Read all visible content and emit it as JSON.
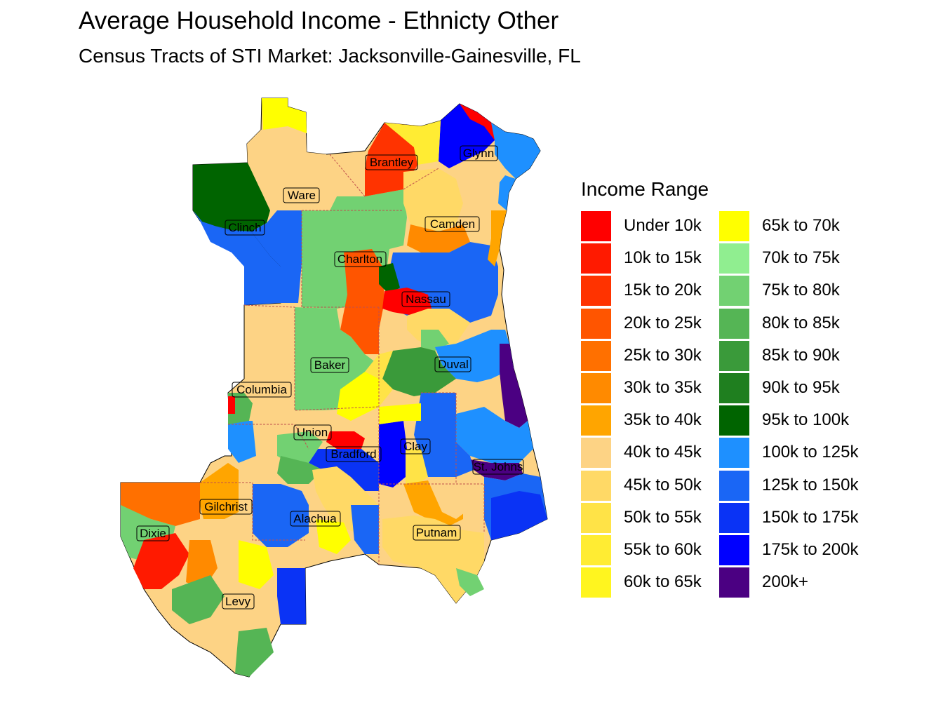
{
  "title": "Average Household Income - Ethnicty Other",
  "subtitle": "Census Tracts of STI Market: Jacksonville-Gainesville, FL",
  "legend": {
    "title": "Income Range",
    "items": [
      {
        "label": "Under 10k",
        "color": "#FF0000"
      },
      {
        "label": "10k to 15k",
        "color": "#FF1A00"
      },
      {
        "label": "15k to 20k",
        "color": "#FF3300"
      },
      {
        "label": "20k to 25k",
        "color": "#FF5500"
      },
      {
        "label": "25k to 30k",
        "color": "#FF7000"
      },
      {
        "label": "30k to 35k",
        "color": "#FF8A00"
      },
      {
        "label": "35k to 40k",
        "color": "#FFA500"
      },
      {
        "label": "40k to 45k",
        "color": "#FDD385"
      },
      {
        "label": "45k to 50k",
        "color": "#FFD966"
      },
      {
        "label": "50k to 55k",
        "color": "#FFE347"
      },
      {
        "label": "55k to 60k",
        "color": "#FFEC33"
      },
      {
        "label": "60k to 65k",
        "color": "#FFF51F"
      },
      {
        "label": "65k to 70k",
        "color": "#FFFF00"
      },
      {
        "label": "70k to 75k",
        "color": "#90EE90"
      },
      {
        "label": "75k to 80k",
        "color": "#72D172"
      },
      {
        "label": "80k to 85k",
        "color": "#55B555"
      },
      {
        "label": "85k to 90k",
        "color": "#3A9A3A"
      },
      {
        "label": "90k to 95k",
        "color": "#1F7F1F"
      },
      {
        "label": "95k to 100k",
        "color": "#006400"
      },
      {
        "label": "100k to 125k",
        "color": "#1E90FF"
      },
      {
        "label": "125k to 150k",
        "color": "#1A66F5"
      },
      {
        "label": "150k to 175k",
        "color": "#0A33F5"
      },
      {
        "label": "175k to 200k",
        "color": "#0000FF"
      },
      {
        "label": "200k+",
        "color": "#4B0082"
      }
    ]
  },
  "counties": [
    {
      "name": "Brantley"
    },
    {
      "name": "Glynn"
    },
    {
      "name": "Ware"
    },
    {
      "name": "Camden"
    },
    {
      "name": "Clinch"
    },
    {
      "name": "Charlton"
    },
    {
      "name": "Nassau"
    },
    {
      "name": "Baker"
    },
    {
      "name": "Duval"
    },
    {
      "name": "Columbia"
    },
    {
      "name": "Union"
    },
    {
      "name": "Clay"
    },
    {
      "name": "Bradford"
    },
    {
      "name": "St. Johns"
    },
    {
      "name": "Gilchrist"
    },
    {
      "name": "Alachua"
    },
    {
      "name": "Dixie"
    },
    {
      "name": "Putnam"
    },
    {
      "name": "Levy"
    }
  ]
}
